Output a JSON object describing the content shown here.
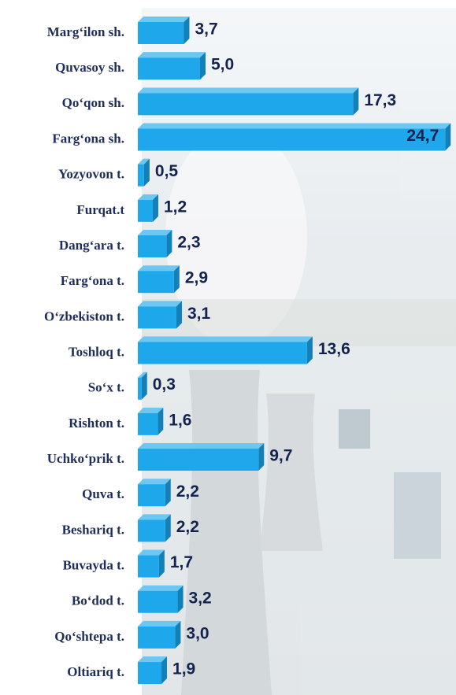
{
  "chart_data": {
    "type": "bar",
    "orientation": "horizontal",
    "categories": [
      "Marg‘ilon sh.",
      "Quvasoy sh.",
      "Qo‘qon sh.",
      "Farg‘ona sh.",
      "Yozyovon t.",
      "Furqat.t",
      "Dang‘ara t.",
      "Farg‘ona t.",
      "O‘zbekiston t.",
      "Toshloq t.",
      "So‘x t.",
      "Rishton t.",
      "Uchko‘prik t.",
      "Quva t.",
      "Beshariq t.",
      "Buvayda t.",
      "Bo‘dod t.",
      "Qo‘shtepa t.",
      "Oltiariq t."
    ],
    "values": [
      3.7,
      5.0,
      17.3,
      24.7,
      0.5,
      1.2,
      2.3,
      2.9,
      3.1,
      13.6,
      0.3,
      1.6,
      9.7,
      2.2,
      2.2,
      1.7,
      3.2,
      3.0,
      1.9
    ],
    "value_labels": [
      "3,7",
      "5,0",
      "17,3",
      "24,7",
      "0,5",
      "1,2",
      "2,3",
      "2,9",
      "3,1",
      "13,6",
      "0,3",
      "1,6",
      "9,7",
      "2,2",
      "2,2",
      "1,7",
      "3,2",
      "3,0",
      "1,9"
    ],
    "color": "#1ea7ea",
    "xlim": [
      0,
      25
    ]
  }
}
